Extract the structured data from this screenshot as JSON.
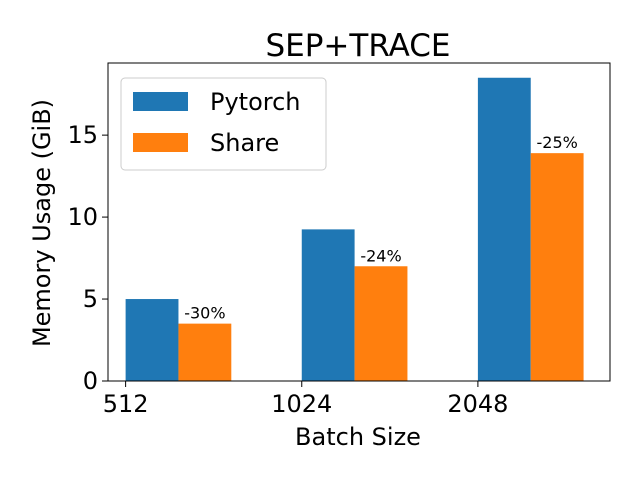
{
  "chart_data": {
    "type": "bar",
    "title": "SEP+TRACE",
    "xlabel": "Batch Size",
    "ylabel": "Memory Usage (GiB)",
    "categories": [
      "512",
      "1024",
      "2048"
    ],
    "series": [
      {
        "name": "Pytorch",
        "values": [
          5.0,
          9.25,
          18.5
        ],
        "color": "#1f77b4"
      },
      {
        "name": "Share",
        "values": [
          3.5,
          7.0,
          13.9
        ],
        "color": "#ff7f0e"
      }
    ],
    "annotations": [
      "-30%",
      "-24%",
      "-25%"
    ],
    "ylim": [
      0,
      19.4
    ],
    "yticks": [
      0,
      5,
      10,
      15
    ],
    "grid": false,
    "legend_position": "top-left"
  }
}
